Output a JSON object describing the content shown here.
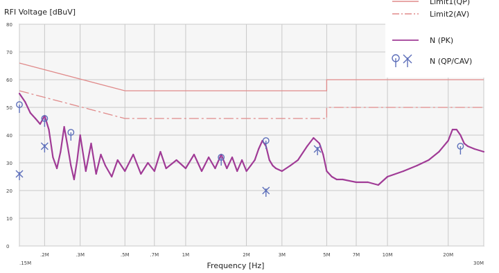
{
  "chart_data": {
    "type": "line",
    "title": "",
    "ylabel": "RFI Voltage [dBuV]",
    "xlabel": "Frequency [Hz]",
    "x_scale": "log",
    "xlim": [
      0.15,
      30
    ],
    "ylim": [
      0,
      80
    ],
    "grid": true,
    "legend_position": "top-right",
    "y_ticks": [
      {
        "value": 0,
        "label": "0"
      },
      {
        "value": 10,
        "label": "10"
      },
      {
        "value": 20,
        "label": "20"
      },
      {
        "value": 30,
        "label": "30"
      },
      {
        "value": 40,
        "label": "40"
      },
      {
        "value": 50,
        "label": "50"
      },
      {
        "value": 60,
        "label": "60"
      },
      {
        "value": 70,
        "label": "70"
      },
      {
        "value": 80,
        "label": "80"
      }
    ],
    "x_ticks": [
      {
        "value": 0.15,
        "label": ".15M"
      },
      {
        "value": 0.2,
        "label": ".2M"
      },
      {
        "value": 0.3,
        "label": ".3M"
      },
      {
        "value": 0.5,
        "label": ".5M"
      },
      {
        "value": 0.7,
        "label": ".7M"
      },
      {
        "value": 1,
        "label": "1M"
      },
      {
        "value": 2,
        "label": "2M"
      },
      {
        "value": 3,
        "label": "3M"
      },
      {
        "value": 5,
        "label": "5M"
      },
      {
        "value": 7,
        "label": "7M"
      },
      {
        "value": 10,
        "label": "10M"
      },
      {
        "value": 20,
        "label": "20M"
      },
      {
        "value": 30,
        "label": "30M"
      }
    ],
    "legend": [
      {
        "label": "Limit1(QP)",
        "key": "limit_qp"
      },
      {
        "label": "Limit2(AV)",
        "key": "limit_av"
      },
      {
        "label": "N (PK)",
        "key": "n_pk"
      },
      {
        "label": "N (QP/CAV)",
        "key": "n_qp_cav"
      }
    ],
    "series": [
      {
        "name": "Limit1(QP)",
        "key": "limit_qp",
        "style": "solid",
        "color": "#e08a8a",
        "x": [
          0.15,
          0.5,
          0.5,
          5,
          5,
          30
        ],
        "y": [
          66,
          56,
          56,
          56,
          60,
          60
        ]
      },
      {
        "name": "Limit2(AV)",
        "key": "limit_av",
        "style": "dashdot",
        "color": "#e08a8a",
        "x": [
          0.15,
          0.5,
          0.5,
          5,
          5,
          30
        ],
        "y": [
          56,
          46,
          46,
          46,
          50,
          50
        ]
      },
      {
        "name": "N (PK)",
        "key": "n_pk",
        "color": "#a03b96",
        "x": [
          0.15,
          0.16,
          0.17,
          0.18,
          0.19,
          0.2,
          0.21,
          0.22,
          0.23,
          0.24,
          0.25,
          0.26,
          0.27,
          0.28,
          0.29,
          0.3,
          0.32,
          0.34,
          0.36,
          0.38,
          0.4,
          0.43,
          0.46,
          0.5,
          0.55,
          0.6,
          0.65,
          0.7,
          0.75,
          0.8,
          0.9,
          1.0,
          1.1,
          1.2,
          1.3,
          1.4,
          1.5,
          1.6,
          1.7,
          1.8,
          1.9,
          2.0,
          2.1,
          2.2,
          2.3,
          2.4,
          2.5,
          2.6,
          2.7,
          2.8,
          3.0,
          3.3,
          3.6,
          4.0,
          4.3,
          4.6,
          4.8,
          5.0,
          5.3,
          5.6,
          6.0,
          7.0,
          8.0,
          9.0,
          10.0,
          12.0,
          14.0,
          16.0,
          18.0,
          20.0,
          21.0,
          22.0,
          23.0,
          24.0,
          25.0,
          27.0,
          30.0
        ],
        "y": [
          55,
          52,
          48,
          46,
          44,
          47,
          42,
          32,
          28,
          34,
          43,
          36,
          29,
          24,
          31,
          40,
          27,
          37,
          26,
          33,
          29,
          25,
          31,
          27,
          33,
          26,
          30,
          27,
          34,
          28,
          31,
          28,
          33,
          27,
          32,
          28,
          33,
          28,
          32,
          27,
          31,
          27,
          29,
          31,
          35,
          38,
          36,
          31,
          29,
          28,
          27,
          29,
          31,
          36,
          39,
          37,
          33,
          27,
          25,
          24,
          24,
          23,
          23,
          22,
          25,
          27,
          29,
          31,
          34,
          38,
          42,
          42,
          40,
          37,
          36,
          35,
          34
        ]
      },
      {
        "name": "N (QP/CAV)",
        "key": "n_qp_cav",
        "color": "#5d6fba",
        "points": [
          {
            "x": 0.15,
            "y": 50,
            "type": "qp"
          },
          {
            "x": 0.15,
            "y": 26,
            "type": "cav"
          },
          {
            "x": 0.2,
            "y": 45,
            "type": "qp"
          },
          {
            "x": 0.2,
            "y": 36,
            "type": "cav"
          },
          {
            "x": 0.27,
            "y": 40,
            "type": "qp"
          },
          {
            "x": 1.5,
            "y": 31,
            "type": "qp"
          },
          {
            "x": 2.5,
            "y": 37,
            "type": "qp"
          },
          {
            "x": 2.5,
            "y": 20,
            "type": "cav"
          },
          {
            "x": 4.5,
            "y": 35,
            "type": "cav"
          },
          {
            "x": 23.0,
            "y": 35,
            "type": "qp"
          }
        ]
      }
    ]
  }
}
